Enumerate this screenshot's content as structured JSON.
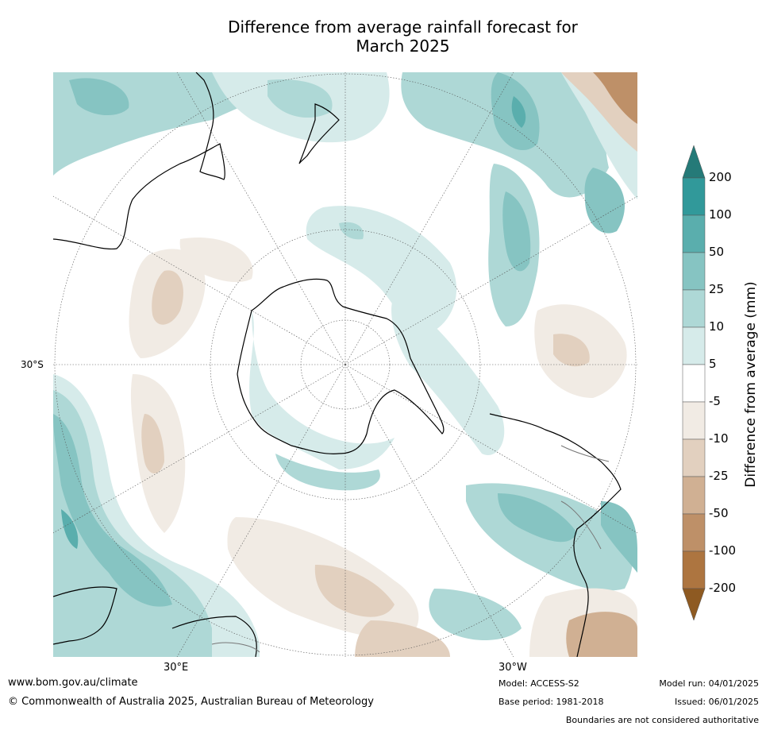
{
  "title_line1": "Difference from average rainfall forecast for",
  "title_line2": "March 2025",
  "map": {
    "lat_label": "30°S",
    "lon_label_east": "30°E",
    "lon_label_west": "30°W"
  },
  "colorbar": {
    "title": "Difference from average (mm)",
    "ticks": [
      "200",
      "100",
      "50",
      "25",
      "10",
      "5",
      "-5",
      "-10",
      "-25",
      "-50",
      "-100",
      "-200"
    ],
    "colors": {
      "c200": "#257a78",
      "c100": "#31999a",
      "c50": "#5aaead",
      "c25": "#86c4c2",
      "c10": "#aed8d6",
      "c5": "#d6ebea",
      "c0": "#ffffff",
      "cm5": "#f1ebe4",
      "cm10": "#e2d0bf",
      "cm25": "#d0b093",
      "cm50": "#be9068",
      "cm100": "#ad7540",
      "cm200": "#8e5a22"
    }
  },
  "footer": {
    "url": "www.bom.gov.au/climate",
    "copyright": "© Commonwealth of Australia 2025, Australian Bureau of Meteorology",
    "model": "Model: ACCESS-S2",
    "base_period": "Base period: 1981-2018",
    "model_run": "Model run: 04/01/2025",
    "issued": "Issued: 06/01/2025",
    "disclaimer": "Boundaries are not considered authoritative"
  }
}
